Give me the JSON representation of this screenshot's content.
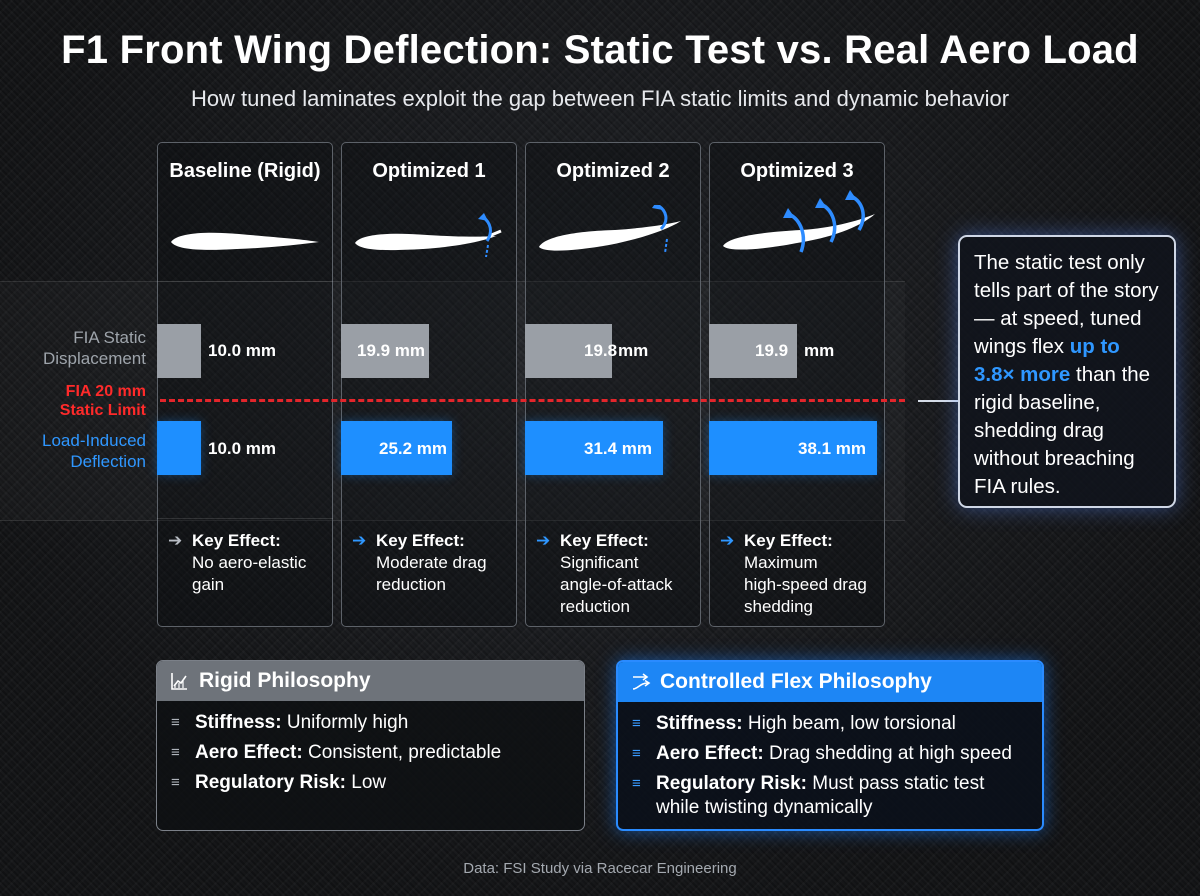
{
  "title": "F1 Front Wing Deflection: Static Test vs. Real Aero Load",
  "subtitle": "How tuned laminates exploit the gap between FIA static limits and dynamic behavior",
  "row_labels": {
    "static_line1": "FIA Static",
    "static_line2": "Displacement",
    "limit_line1": "FIA 20 mm",
    "limit_line2": "Static Limit",
    "load_line1": "Load-Induced",
    "load_line2": "Deflection"
  },
  "colors": {
    "static_bar": "#9a9fa6",
    "load_bar": "#1e8fff",
    "limit_line": "#e3252b",
    "accent": "#2f97ff"
  },
  "chart_data": {
    "type": "bar",
    "categories": [
      "Baseline (Rigid)",
      "Optimized 1",
      "Optimized 2",
      "Optimized 3"
    ],
    "unit": "mm",
    "limit": {
      "label": "FIA 20 mm Static Limit",
      "value": 20
    },
    "series": [
      {
        "name": "FIA Static Displacement",
        "values": [
          10.0,
          19.9,
          19.8,
          19.9
        ],
        "labels": [
          "10.0 mm",
          "19.9 mm",
          "19.8",
          "19.9"
        ],
        "unit_labels": [
          "",
          "",
          "mm",
          "mm"
        ]
      },
      {
        "name": "Load-Induced Deflection",
        "values": [
          10.0,
          25.2,
          31.4,
          38.1
        ],
        "labels": [
          "10.0 mm",
          "25.2 mm",
          "31.4 mm",
          "38.1 mm"
        ]
      }
    ]
  },
  "key_effects": [
    {
      "head": "Key Effect:",
      "lines": [
        "No aero-elastic",
        "gain"
      ],
      "arrow": "➔"
    },
    {
      "head": "Key Effect:",
      "lines": [
        "Moderate drag",
        "reduction"
      ],
      "arrow": "➔"
    },
    {
      "head": "Key Effect:",
      "lines": [
        "Significant",
        "angle-of-attack",
        "reduction"
      ],
      "arrow": "➔"
    },
    {
      "head": "Key Effect:",
      "lines": [
        "Maximum",
        "high-speed drag",
        "shedding"
      ],
      "arrow": "➔"
    }
  ],
  "callout": {
    "text_before": "The static test only tells part of the story — at speed, tuned wings flex ",
    "highlight": "up to 3.8× more",
    "text_after": " than the rigid baseline, shedding drag without breaching FIA rules."
  },
  "rigid_panel": {
    "title": "Rigid Philosophy",
    "icon": "chart-icon",
    "items": [
      {
        "label": "Stiffness:",
        "value": "Uniformly high"
      },
      {
        "label": "Aero Effect:",
        "value": "Consistent, predictable"
      },
      {
        "label": "Regulatory Risk:",
        "value": "Low"
      }
    ]
  },
  "flex_panel": {
    "title": "Controlled Flex Philosophy",
    "icon": "flex-icon",
    "items": [
      {
        "label": "Stiffness:",
        "value": "High beam, low torsional"
      },
      {
        "label": "Aero Effect:",
        "value": "Drag shedding at high speed"
      },
      {
        "label": "Regulatory Risk:",
        "value": "Must pass static test while twisting dynamically"
      }
    ]
  },
  "source": "Data: FSI Study via Racecar Engineering"
}
